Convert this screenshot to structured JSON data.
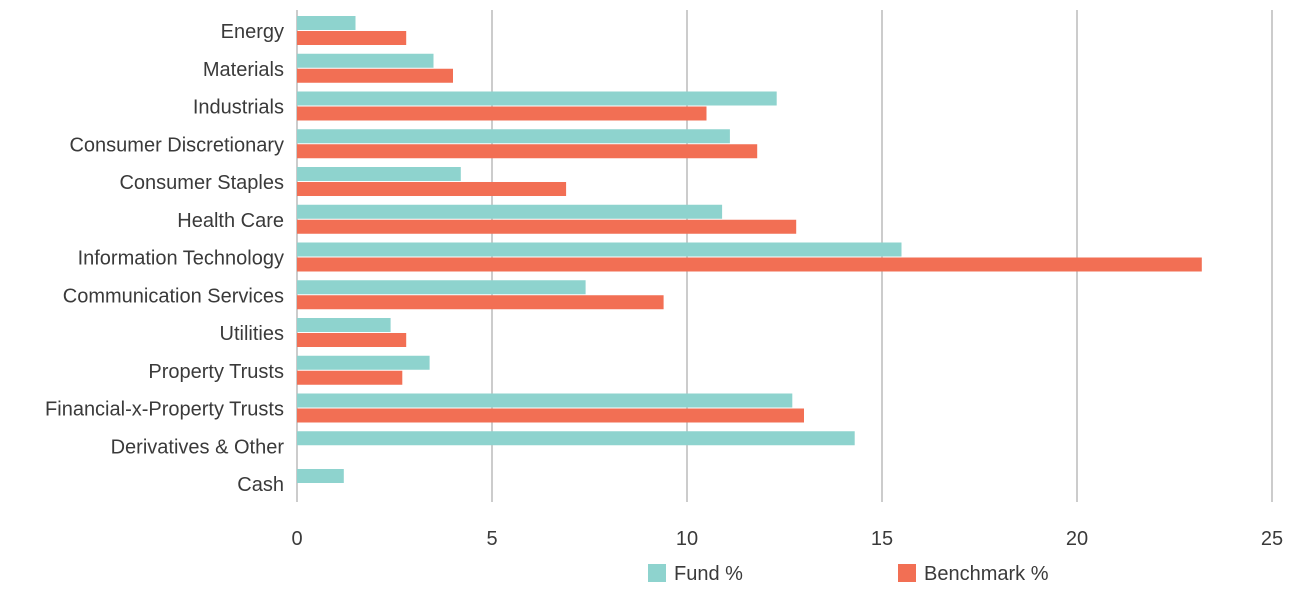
{
  "chart_data": {
    "type": "bar",
    "orientation": "horizontal",
    "categories": [
      "Energy",
      "Materials",
      "Industrials",
      "Consumer Discretionary",
      "Consumer Staples",
      "Health Care",
      "Information Technology",
      "Communication Services",
      "Utilities",
      "Property Trusts",
      "Financial-x-Property Trusts",
      "Derivatives & Other",
      "Cash"
    ],
    "series": [
      {
        "name": "Fund %",
        "color": "#8ed3ce",
        "values": [
          1.5,
          3.5,
          12.3,
          11.1,
          4.2,
          10.9,
          15.5,
          7.4,
          2.4,
          3.4,
          12.7,
          14.3,
          1.2
        ]
      },
      {
        "name": "Benchmark %",
        "color": "#f26f54",
        "values": [
          2.8,
          4.0,
          10.5,
          11.8,
          6.9,
          12.8,
          23.2,
          9.4,
          2.8,
          2.7,
          13.0,
          null,
          null
        ]
      }
    ],
    "xlim": [
      0,
      25
    ],
    "x_ticks": [
      "0",
      "5",
      "10",
      "15",
      "20",
      "25"
    ],
    "grid": true,
    "legend_position": "bottom-center"
  }
}
